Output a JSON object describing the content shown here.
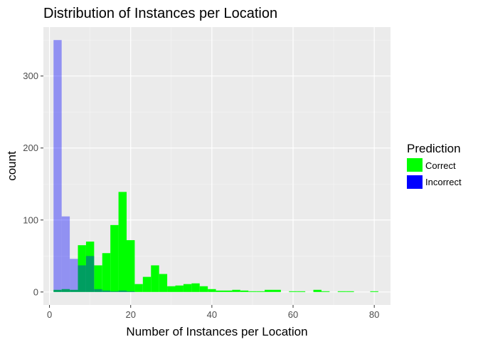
{
  "chart_data": {
    "type": "bar",
    "subtype": "histogram",
    "title": "Distribution of Instances per Location",
    "xlabel": "Number of Instances per Location",
    "ylabel": "count",
    "xlim": [
      -1.5,
      84
    ],
    "ylim": [
      -18,
      368
    ],
    "x_ticks": [
      0,
      20,
      40,
      60,
      80
    ],
    "y_ticks": [
      0,
      100,
      200,
      300
    ],
    "x_minor_ticks": [
      10,
      30,
      50,
      70
    ],
    "y_minor_ticks": [
      50,
      150,
      250,
      350
    ],
    "bin_width": 2,
    "grid": true,
    "legend": {
      "title": "Prediction",
      "position": "right",
      "entries": [
        {
          "label": "Correct",
          "color": "#00FF00"
        },
        {
          "label": "Incorrect",
          "color": "#0000FF"
        }
      ]
    },
    "series": [
      {
        "name": "Correct",
        "color": "#00FF00",
        "opacity": 1,
        "bins": [
          {
            "x0": 1,
            "x1": 3,
            "count": 3
          },
          {
            "x0": 3,
            "x1": 5,
            "count": 4
          },
          {
            "x0": 5,
            "x1": 7,
            "count": 3
          },
          {
            "x0": 7,
            "x1": 9,
            "count": 65
          },
          {
            "x0": 9,
            "x1": 11,
            "count": 70
          },
          {
            "x0": 11,
            "x1": 13,
            "count": 37
          },
          {
            "x0": 13,
            "x1": 15,
            "count": 54
          },
          {
            "x0": 15,
            "x1": 17,
            "count": 93
          },
          {
            "x0": 17,
            "x1": 19,
            "count": 139
          },
          {
            "x0": 19,
            "x1": 21,
            "count": 72
          },
          {
            "x0": 21,
            "x1": 23,
            "count": 11
          },
          {
            "x0": 23,
            "x1": 25,
            "count": 21
          },
          {
            "x0": 25,
            "x1": 27,
            "count": 37
          },
          {
            "x0": 27,
            "x1": 29,
            "count": 25
          },
          {
            "x0": 29,
            "x1": 31,
            "count": 8
          },
          {
            "x0": 31,
            "x1": 33,
            "count": 9
          },
          {
            "x0": 33,
            "x1": 35,
            "count": 11
          },
          {
            "x0": 35,
            "x1": 37,
            "count": 12
          },
          {
            "x0": 37,
            "x1": 39,
            "count": 8
          },
          {
            "x0": 39,
            "x1": 41,
            "count": 4
          },
          {
            "x0": 41,
            "x1": 43,
            "count": 2
          },
          {
            "x0": 43,
            "x1": 45,
            "count": 2
          },
          {
            "x0": 45,
            "x1": 47,
            "count": 3
          },
          {
            "x0": 47,
            "x1": 49,
            "count": 2
          },
          {
            "x0": 49,
            "x1": 51,
            "count": 1
          },
          {
            "x0": 51,
            "x1": 53,
            "count": 1
          },
          {
            "x0": 53,
            "x1": 55,
            "count": 3
          },
          {
            "x0": 55,
            "x1": 57,
            "count": 3
          },
          {
            "x0": 59,
            "x1": 61,
            "count": 1
          },
          {
            "x0": 61,
            "x1": 63,
            "count": 1
          },
          {
            "x0": 65,
            "x1": 67,
            "count": 3
          },
          {
            "x0": 67,
            "x1": 69,
            "count": 1
          },
          {
            "x0": 71,
            "x1": 73,
            "count": 1
          },
          {
            "x0": 73,
            "x1": 75,
            "count": 1
          },
          {
            "x0": 79,
            "x1": 81,
            "count": 1
          }
        ]
      },
      {
        "name": "Incorrect",
        "color": "#0000FF",
        "opacity": 0.38,
        "bins": [
          {
            "x0": 1,
            "x1": 3,
            "count": 350
          },
          {
            "x0": 3,
            "x1": 5,
            "count": 105
          },
          {
            "x0": 5,
            "x1": 7,
            "count": 46
          },
          {
            "x0": 7,
            "x1": 9,
            "count": 37
          },
          {
            "x0": 9,
            "x1": 11,
            "count": 50
          },
          {
            "x0": 11,
            "x1": 13,
            "count": 4
          },
          {
            "x0": 13,
            "x1": 15,
            "count": 2
          },
          {
            "x0": 15,
            "x1": 17,
            "count": 1
          },
          {
            "x0": 17,
            "x1": 19,
            "count": 2
          },
          {
            "x0": 19,
            "x1": 21,
            "count": 1
          }
        ]
      }
    ]
  }
}
